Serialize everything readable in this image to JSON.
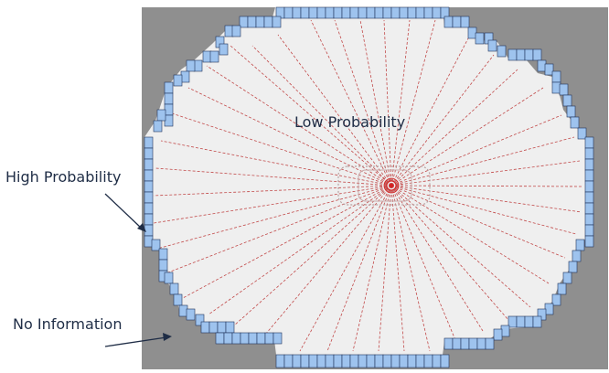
{
  "labels": {
    "low": "Low Probability",
    "high": "High Probability",
    "none": "No Information"
  },
  "colors": {
    "unknown": "#8f8f8f",
    "free": "#efefef",
    "occupied_fill": "#9ec3ee",
    "occupied_edge": "#20325a",
    "ray": "#c24a4a",
    "robot": "#d62020",
    "text": "#1f2d46"
  }
}
